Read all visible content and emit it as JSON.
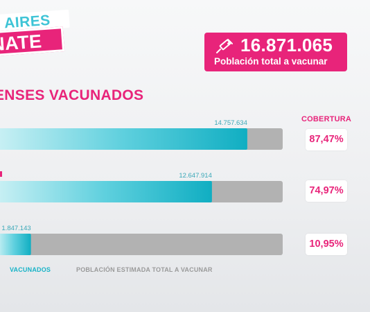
{
  "logo": {
    "line1": "S AIRES",
    "line2": "NATE"
  },
  "total": {
    "value": "16.871.065",
    "label": "Población total a vacunar",
    "icon": "syringe-icon"
  },
  "title": "ENSES VACUNADOS",
  "coverage_header": "COBERTURA",
  "colors": {
    "pink": "#e8247a",
    "teal": "#17b3c7",
    "gray": "#b2b2b2"
  },
  "chart_data": {
    "type": "bar",
    "orientation": "horizontal",
    "total": 16871065,
    "series": [
      {
        "name": "VACUNADOS",
        "values": [
          14757634,
          12647914,
          1847143
        ],
        "labels": [
          "14.757.634",
          "12.647.914",
          "1.847.143"
        ]
      },
      {
        "name": "POBLACIÓN ESTIMADA TOTAL A VACUNAR",
        "values": [
          16871065,
          16871065,
          16871065
        ]
      }
    ],
    "coverage": [
      "87,47%",
      "74,97%",
      "10,95%"
    ],
    "legend": [
      "VACUNADOS",
      "POBLACIÓN ESTIMADA TOTAL A VACUNAR"
    ]
  }
}
